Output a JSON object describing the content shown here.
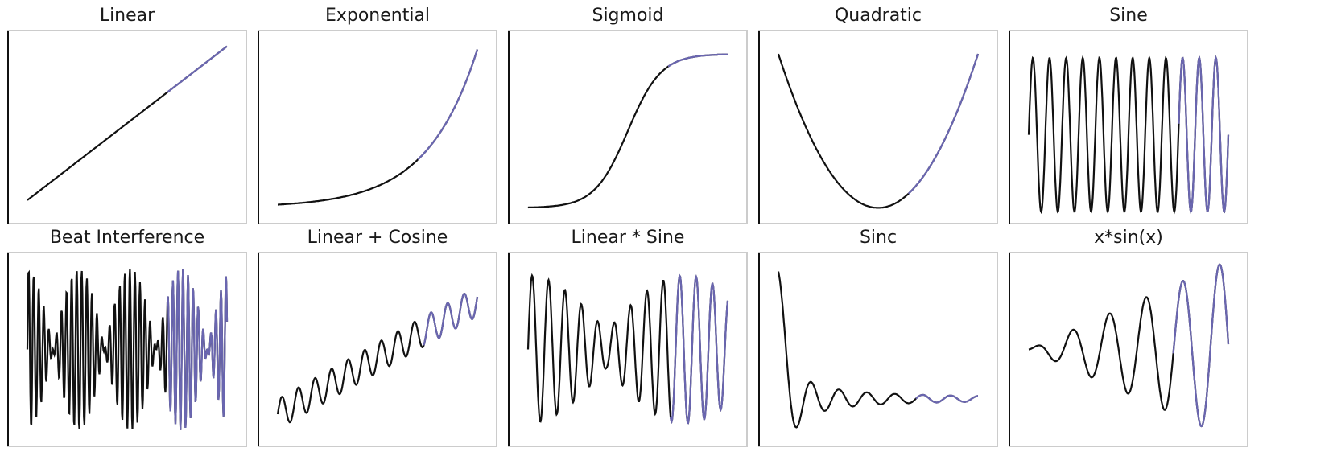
{
  "figure": {
    "colors": {
      "truth": "#111111",
      "prediction": "#6a66b0",
      "uncertainty": "#8fa6d6",
      "frame": "#cccccc",
      "axis": "#111111"
    }
  },
  "chart_data": [
    {
      "type": "line",
      "title": "Linear",
      "xlim": [
        0,
        1
      ],
      "ylim": [
        -0.1,
        1.05
      ],
      "pred_start": 0.7,
      "series": []
    },
    {
      "type": "line",
      "title": "Exponential",
      "xlim": [
        0,
        1
      ],
      "ylim": [
        -0.07,
        1.07
      ],
      "pred_start": 0.7,
      "series": []
    },
    {
      "type": "line",
      "title": "Sigmoid",
      "xlim": [
        0,
        1
      ],
      "ylim": [
        -0.05,
        1.1
      ],
      "pred_start": 0.7,
      "series": []
    },
    {
      "type": "line",
      "title": "Quadratic",
      "xlim": [
        -1,
        1
      ],
      "ylim": [
        -0.05,
        1.1
      ],
      "pred_start": 0.3,
      "series": []
    },
    {
      "type": "line",
      "title": "Sine",
      "xlim": [
        0,
        12
      ],
      "ylim": [
        -1.05,
        1.25
      ],
      "pred_start": 9,
      "series": []
    },
    {
      "type": "line",
      "title": "Beat Interference",
      "xlim": [
        0,
        60
      ],
      "ylim": [
        -2.2,
        2.2
      ],
      "pred_start": 42,
      "series": []
    },
    {
      "type": "line",
      "title": "Linear + Cosine",
      "xlim": [
        0,
        10
      ],
      "ylim": [
        -1.6,
        10.2
      ],
      "pred_start": 7.3,
      "series": []
    },
    {
      "type": "line",
      "title": "Linear * Sine",
      "xlim": [
        0,
        14
      ],
      "ylim": [
        -1.2,
        1.2
      ],
      "pred_start": 10,
      "series": []
    },
    {
      "type": "line",
      "title": "Sinc",
      "xlim": [
        0,
        45
      ],
      "ylim": [
        -0.3,
        1.05
      ],
      "pred_start": 31,
      "series": []
    },
    {
      "type": "line",
      "title": "x*sin(x)",
      "xlim": [
        0,
        36
      ],
      "ylim": [
        -36,
        36
      ],
      "pred_start": 26,
      "series": []
    }
  ]
}
